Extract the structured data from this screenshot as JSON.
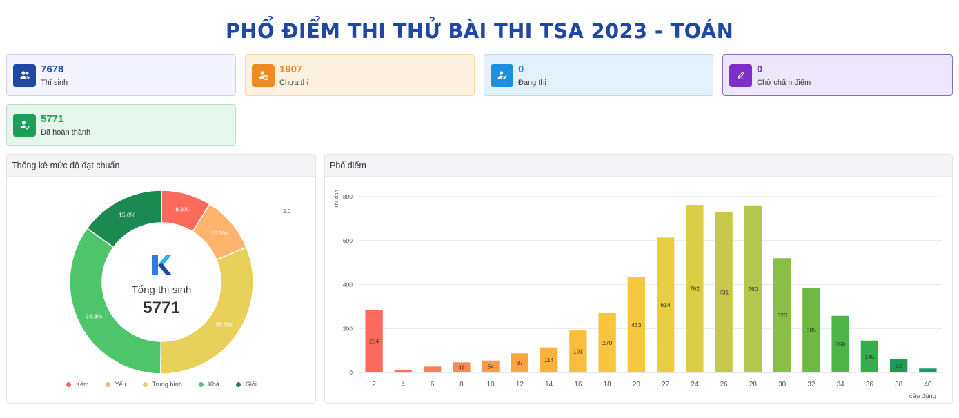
{
  "title": "PHỔ ĐIỂM THI THỬ BÀI THI TSA 2023 - TOÁN",
  "stats": [
    {
      "value": "7678",
      "label": "Thí sinh",
      "icon": "users-icon"
    },
    {
      "value": "1907",
      "label": "Chưa thi",
      "icon": "user-clock-icon"
    },
    {
      "value": "0",
      "label": "Đang thi",
      "icon": "user-pen-icon"
    },
    {
      "value": "0",
      "label": "Chờ chấm điểm",
      "icon": "pen-icon"
    },
    {
      "value": "5771",
      "label": "Đã hoàn thành",
      "icon": "user-check-icon"
    }
  ],
  "colors": {
    "title": "#1f47a3",
    "total": "#1f47a3",
    "pending": "#f08a24",
    "taking": "#1b8fe0",
    "grading": "#7e2fc8",
    "completed": "#1f9e57"
  },
  "donut_panel": {
    "title": "Thống kê mức độ đạt chuẩn",
    "center_label": "Tổng thí sinh",
    "center_value": "5771",
    "side_note": "2.0",
    "logo": "k-logo"
  },
  "histogram_panel": {
    "title": "Phổ điểm"
  },
  "chart_data": [
    {
      "type": "pie",
      "categories": [
        "Kém",
        "Yếu",
        "Trung bình",
        "Khá",
        "Giỏi"
      ],
      "values": [
        8.8,
        10.0,
        31.3,
        34.8,
        15.0
      ],
      "labels": [
        "8.8%",
        "10.0%",
        "31.3%",
        "34.8%",
        "15.0%"
      ],
      "colors": [
        "#fb6a5a",
        "#fdb46d",
        "#e9d05a",
        "#4ec56b",
        "#1b8a52"
      ],
      "legend": "bottom"
    },
    {
      "type": "bar",
      "x": [
        2,
        4,
        6,
        8,
        10,
        12,
        14,
        16,
        18,
        20,
        22,
        24,
        26,
        28,
        30,
        32,
        34,
        36,
        38,
        40
      ],
      "values": [
        284,
        12,
        27,
        46,
        54,
        87,
        114,
        191,
        270,
        433,
        614,
        762,
        731,
        760,
        520,
        385,
        258,
        145,
        62,
        18
      ],
      "shown_labels": [
        "284",
        "",
        "",
        "46",
        "54",
        "87",
        "114",
        "191",
        "270",
        "433",
        "614",
        "762",
        "731",
        "760",
        "520",
        "385",
        "258",
        "145",
        "62",
        ""
      ],
      "colors": [
        "#fb6a5a",
        "#fb6a5a",
        "#fb7c55",
        "#fb8a4e",
        "#fc9a45",
        "#fca53f",
        "#fcb23d",
        "#fbbd3b",
        "#fbc43e",
        "#f7c83d",
        "#e8cc44",
        "#dccd45",
        "#c8c94a",
        "#b3c64d",
        "#89bf45",
        "#6fb942",
        "#4cb548",
        "#35ad4d",
        "#1f9a55",
        "#179a66"
      ],
      "ylabel": "Thí sinh",
      "xlabel": "câu đúng",
      "ylim": [
        0,
        800
      ],
      "yticks": [
        0,
        200,
        400,
        600,
        800
      ],
      "grid": true
    }
  ]
}
